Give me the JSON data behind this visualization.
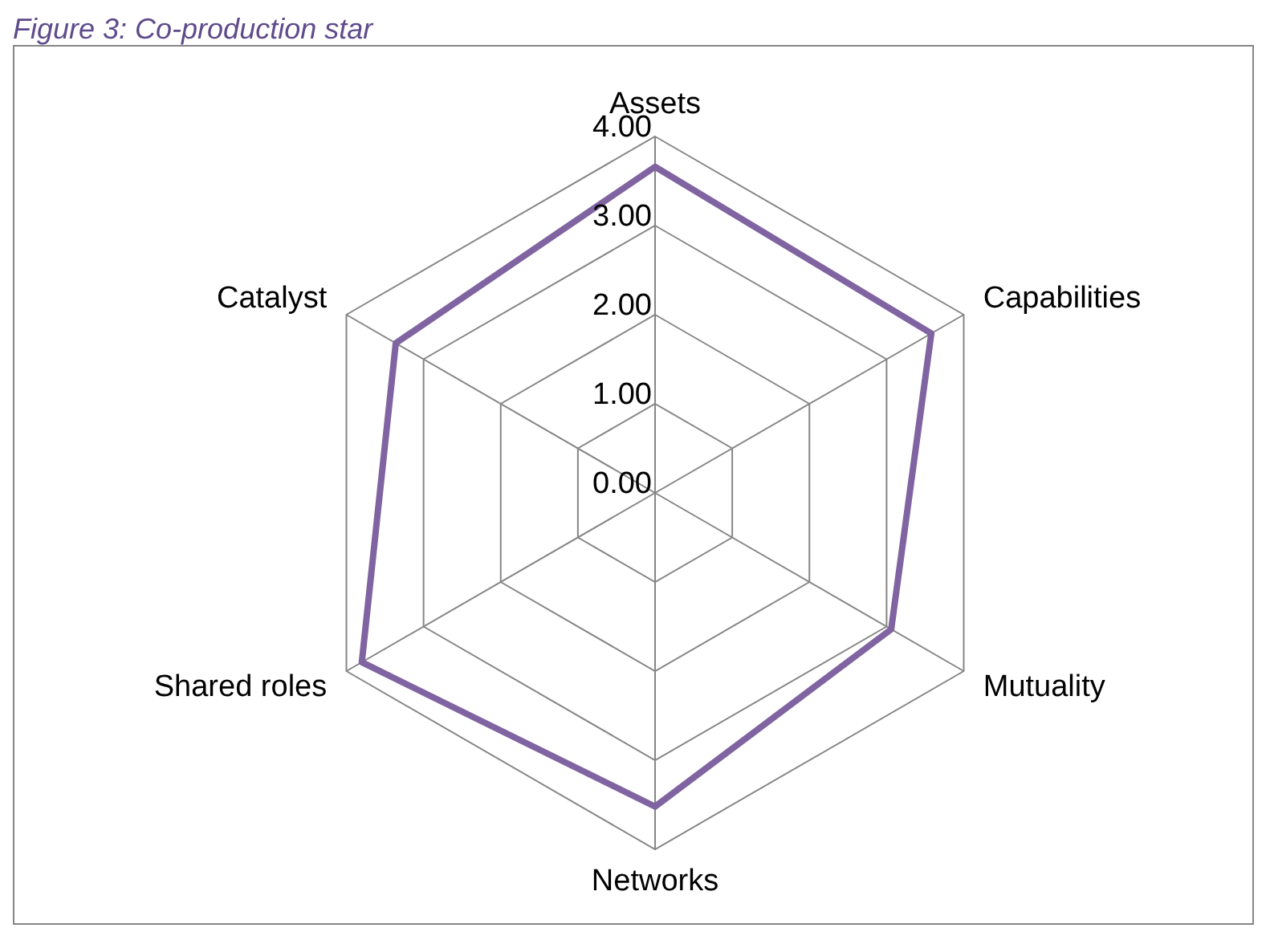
{
  "chart_data": {
    "type": "radar",
    "title": "Figure 3: Co-production star",
    "categories": [
      "Assets",
      "Capabilities",
      "Mutuality",
      "Networks",
      "Shared roles",
      "Catalyst"
    ],
    "series": [
      {
        "color": "#8064a2",
        "values": [
          3.66,
          3.58,
          3.06,
          3.52,
          3.8,
          3.36
        ]
      }
    ],
    "ylim": [
      0,
      4
    ],
    "yticks": [
      {
        "value": 0,
        "label": "0.00"
      },
      {
        "value": 1,
        "label": "1.00"
      },
      {
        "value": 2,
        "label": "2.00"
      },
      {
        "value": 3,
        "label": "3.00"
      },
      {
        "value": 4,
        "label": "4.00"
      }
    ],
    "grid": true,
    "legend": false,
    "marker": "none",
    "line_style": "solid"
  }
}
